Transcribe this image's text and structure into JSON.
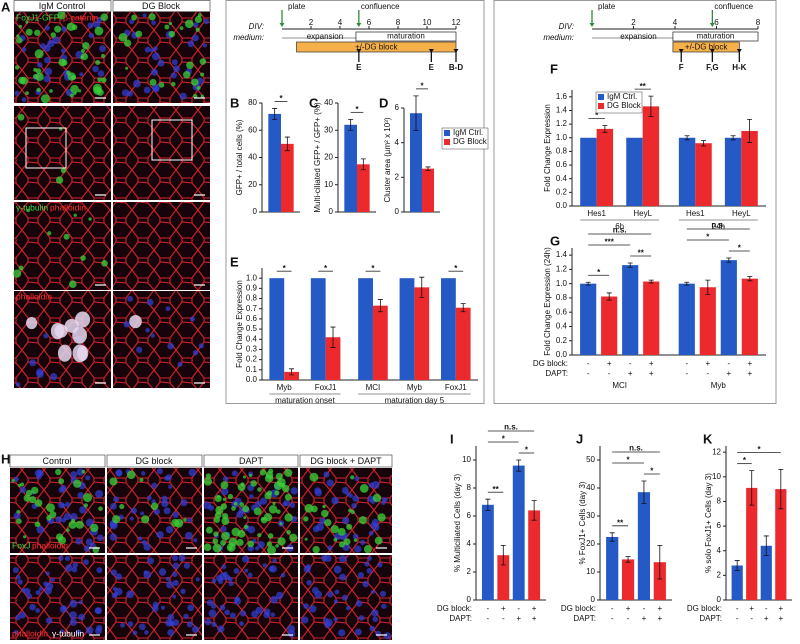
{
  "panel_labels": [
    "A",
    "B",
    "C",
    "D",
    "E",
    "F",
    "G",
    "H",
    "I",
    "J",
    "K"
  ],
  "panel_A": {
    "columns": [
      "IgM Control",
      "DG Block"
    ],
    "row1_stains": [
      "FoxJ1-GFP",
      "β-catenin"
    ],
    "row3_stains": [
      "γ-tubulin",
      "phalloidin"
    ],
    "row4_stains": [
      "phalloidin"
    ]
  },
  "panel_H": {
    "columns": [
      "Control",
      "DG block",
      "DAPT",
      "DG block + DAPT"
    ],
    "row1_stains": [
      "FoxJ",
      "phalloidin"
    ],
    "row2_stains": [
      "phalloidin",
      "γ-tubulin"
    ]
  },
  "timelines": [
    {
      "div_label": "DIV:",
      "medium_label": "medium:",
      "xlim": [
        0,
        12
      ],
      "ticks": [
        2,
        4,
        6,
        8,
        10,
        12
      ],
      "events": [
        "plate",
        "confluence"
      ],
      "phases": [
        "expansion",
        "maturation"
      ],
      "treatment": "+/-DG block",
      "harvests": [
        "E",
        "E",
        "B-D"
      ]
    },
    {
      "div_label": "DIV:",
      "medium_label": "medium:",
      "xlim": [
        0,
        8
      ],
      "ticks": [
        2,
        4,
        6,
        8
      ],
      "events": [
        "plate",
        "confluence"
      ],
      "phases": [
        "expansion",
        "maturation"
      ],
      "treatment": "+/-DG block",
      "harvests": [
        "F",
        "F,G",
        "H-K"
      ]
    }
  ],
  "chart_data": [
    {
      "type": "bar",
      "ylabel": "GFP+ / total cells (%)",
      "ylim": [
        0,
        80
      ],
      "yticks": [
        0,
        20,
        40,
        60,
        80
      ],
      "colors": [
        "#2459c6",
        "#ec2a2e"
      ],
      "groups": [
        {
          "categories": [
            null
          ],
          "values": [
            72,
            50
          ],
          "errors": [
            4,
            5
          ],
          "sig": [
            {
              "text": "*",
              "bars": [
                0,
                1
              ]
            }
          ]
        }
      ]
    },
    {
      "type": "bar",
      "ylabel": "Multi-ciliated GFP+ / GFP+ (%)",
      "ylim": [
        0,
        40
      ],
      "yticks": [
        0,
        10,
        20,
        30,
        40
      ],
      "colors": [
        "#2459c6",
        "#ec2a2e"
      ],
      "groups": [
        {
          "categories": [
            null
          ],
          "values": [
            32,
            17.5
          ],
          "errors": [
            2,
            2
          ],
          "sig": [
            {
              "text": "*",
              "bars": [
                0,
                1
              ]
            }
          ]
        }
      ]
    },
    {
      "type": "bar",
      "ylabel": "Cluster area (µm² x 10³)",
      "ylim": [
        0,
        6
      ],
      "yticks": [
        0,
        2,
        4,
        6
      ],
      "colors": [
        "#2459c6",
        "#ec2a2e"
      ],
      "legend": [
        "IgM Ctrl.",
        "DG Block"
      ],
      "groups": [
        {
          "categories": [
            null
          ],
          "values": [
            5.7,
            2.5
          ],
          "errors": [
            1,
            0.1
          ],
          "sig": [
            {
              "text": "*",
              "bars": [
                0,
                1
              ]
            }
          ]
        }
      ]
    },
    {
      "type": "bar",
      "ylabel": "Fold Change Expression",
      "ylim": [
        0,
        1.1
      ],
      "yticks": [
        {
          "value": 0,
          "label": "0.0"
        },
        0.1,
        0.2,
        0.3,
        0.4,
        0.5,
        0.6,
        0.7,
        0.8,
        0.9,
        {
          "value": 1,
          "label": "1.0"
        }
      ],
      "colors": [
        "#2459c6",
        "#ec2a2e"
      ],
      "groups": [
        {
          "label": "maturation onset",
          "categories": [
            "Myb",
            "FoxJ1"
          ],
          "values": [
            1,
            0.08,
            1,
            0.42
          ],
          "errors": [
            null,
            0.03,
            null,
            0.1
          ],
          "sig": [
            {
              "text": "*",
              "bars": [
                0,
                1
              ]
            },
            {
              "text": "*",
              "bars": [
                2,
                3
              ]
            }
          ]
        },
        {
          "label": "maturation day 5",
          "categories": [
            "MCI",
            "Myb",
            "FoxJ1"
          ],
          "values": [
            1,
            0.73,
            1,
            0.91,
            1,
            0.71
          ],
          "errors": [
            null,
            0.06,
            null,
            0.1,
            null,
            0.04
          ],
          "sig": [
            {
              "text": "*",
              "bars": [
                0,
                1
              ]
            },
            {
              "text": "*",
              "bars": [
                4,
                5
              ]
            }
          ]
        }
      ]
    },
    {
      "type": "bar",
      "ylabel": "Fold Change Expression",
      "ylim": [
        0,
        1.7
      ],
      "yticks": [
        {
          "value": 0,
          "label": "0.0"
        },
        0.2,
        0.4,
        0.6,
        0.8,
        {
          "value": 1,
          "label": "1.0"
        },
        1.2,
        1.4,
        1.6
      ],
      "colors": [
        "#2459c6",
        "#ec2a2e"
      ],
      "legend": [
        "IgM Ctrl.",
        "DG Block"
      ],
      "groups": [
        {
          "label": "6h",
          "categories": [
            "Hes1",
            "HeyL"
          ],
          "values": [
            1,
            1.13,
            1,
            1.46
          ],
          "errors": [
            null,
            0.05,
            null,
            0.15
          ],
          "sig": [
            {
              "text": "*",
              "bars": [
                0,
                1
              ]
            },
            {
              "text": "**",
              "bars": [
                2,
                3
              ]
            }
          ]
        },
        {
          "label": "24h",
          "categories": [
            "Hes1",
            "HeyL"
          ],
          "values": [
            1,
            0.92,
            1,
            1.1
          ],
          "errors": [
            0.03,
            0.04,
            0.03,
            0.17
          ]
        }
      ]
    },
    {
      "type": "bar",
      "ylabel": "Fold Change Expression (24h)",
      "ylim": [
        0,
        1.5
      ],
      "yticks": [
        {
          "value": 0,
          "label": "0.0"
        },
        0.2,
        0.4,
        0.6,
        0.8,
        {
          "value": 1,
          "label": "1.0"
        },
        1.2,
        1.4
      ],
      "colors": [
        "#2459c6",
        "#ec2a2e"
      ],
      "conditions": [
        "DG block:",
        "DAPT:"
      ],
      "groups": [
        {
          "label": "MCI",
          "marks": [
            [
              "-",
              "+",
              "-",
              "+"
            ],
            [
              "-",
              "-",
              "+",
              "+"
            ]
          ],
          "values": [
            1,
            0.82,
            1.26,
            1.03
          ],
          "errors": [
            0.02,
            0.05,
            0.03,
            0.02
          ],
          "sig": [
            {
              "text": "*",
              "bars": [
                0,
                1
              ]
            },
            {
              "text": "**",
              "bars": [
                2,
                3
              ]
            },
            {
              "text": "***",
              "bars": [
                0,
                2
              ]
            },
            {
              "text": "n.s.",
              "bars": [
                0,
                3
              ]
            }
          ]
        },
        {
          "label": "Myb",
          "marks": [
            [
              "-",
              "+",
              "-",
              "+"
            ],
            [
              "-",
              "-",
              "+",
              "+"
            ]
          ],
          "values": [
            1,
            0.95,
            1.33,
            1.07
          ],
          "errors": [
            0.02,
            0.1,
            0.03,
            0.03
          ],
          "sig": [
            {
              "text": "*",
              "bars": [
                2,
                3
              ]
            },
            {
              "text": "*",
              "bars": [
                0,
                2
              ]
            },
            {
              "text": "n.s.",
              "bars": [
                0,
                3
              ]
            }
          ]
        }
      ]
    },
    {
      "type": "bar",
      "ylabel": "% Multiciliated Cells (day 3)",
      "ylim": [
        0,
        11
      ],
      "yticks": [
        0,
        2,
        4,
        6,
        8,
        10
      ],
      "colors": [
        "#2459c6",
        "#ec2a2e"
      ],
      "conditions": [
        "DG block:",
        "DAPT:"
      ],
      "groups": [
        {
          "marks": [
            [
              "-",
              "+",
              "-",
              "+"
            ],
            [
              "-",
              "-",
              "+",
              "+"
            ]
          ],
          "values": [
            6.8,
            3.2,
            9.6,
            6.4
          ],
          "errors": [
            0.4,
            0.7,
            0.4,
            0.7
          ],
          "sig": [
            {
              "text": "**",
              "bars": [
                0,
                1
              ]
            },
            {
              "text": "*",
              "bars": [
                2,
                3
              ]
            },
            {
              "text": "*",
              "bars": [
                0,
                2
              ]
            },
            {
              "text": "n.s.",
              "bars": [
                0,
                3
              ]
            }
          ]
        }
      ]
    },
    {
      "type": "bar",
      "ylabel": "% FoxJ1+ Cells (day 3)",
      "ylim": [
        0,
        55
      ],
      "yticks": [
        0,
        10,
        20,
        30,
        40,
        50
      ],
      "colors": [
        "#2459c6",
        "#ec2a2e"
      ],
      "conditions": [
        "DG block:",
        "DAPT:"
      ],
      "groups": [
        {
          "marks": [
            [
              "-",
              "+",
              "-",
              "+"
            ],
            [
              "-",
              "-",
              "+",
              "+"
            ]
          ],
          "values": [
            22.5,
            14.5,
            38.5,
            13.5
          ],
          "errors": [
            1.5,
            1,
            4,
            6
          ],
          "sig": [
            {
              "text": "**",
              "bars": [
                0,
                1
              ]
            },
            {
              "text": "*",
              "bars": [
                2,
                3
              ]
            },
            {
              "text": "*",
              "bars": [
                0,
                2
              ]
            },
            {
              "text": "n.s.",
              "bars": [
                0,
                3
              ]
            }
          ]
        }
      ]
    },
    {
      "type": "bar",
      "ylabel": "% solo FoxJ1+ Cells (day 3)",
      "ylim": [
        0,
        12.5
      ],
      "yticks": [
        0,
        2,
        4,
        6,
        8,
        10,
        12
      ],
      "colors": [
        "#2459c6",
        "#ec2a2e"
      ],
      "conditions": [
        "DG block:",
        "DAPT:"
      ],
      "groups": [
        {
          "marks": [
            [
              "-",
              "+",
              "-",
              "+"
            ],
            [
              "-",
              "-",
              "+",
              "+"
            ]
          ],
          "values": [
            2.8,
            9.1,
            4.4,
            9.0
          ],
          "errors": [
            0.4,
            1.4,
            0.8,
            1.6
          ],
          "sig": [
            {
              "text": "*",
              "bars": [
                0,
                1
              ]
            },
            {
              "text": "*",
              "bars": [
                0,
                3
              ]
            }
          ]
        }
      ]
    }
  ]
}
